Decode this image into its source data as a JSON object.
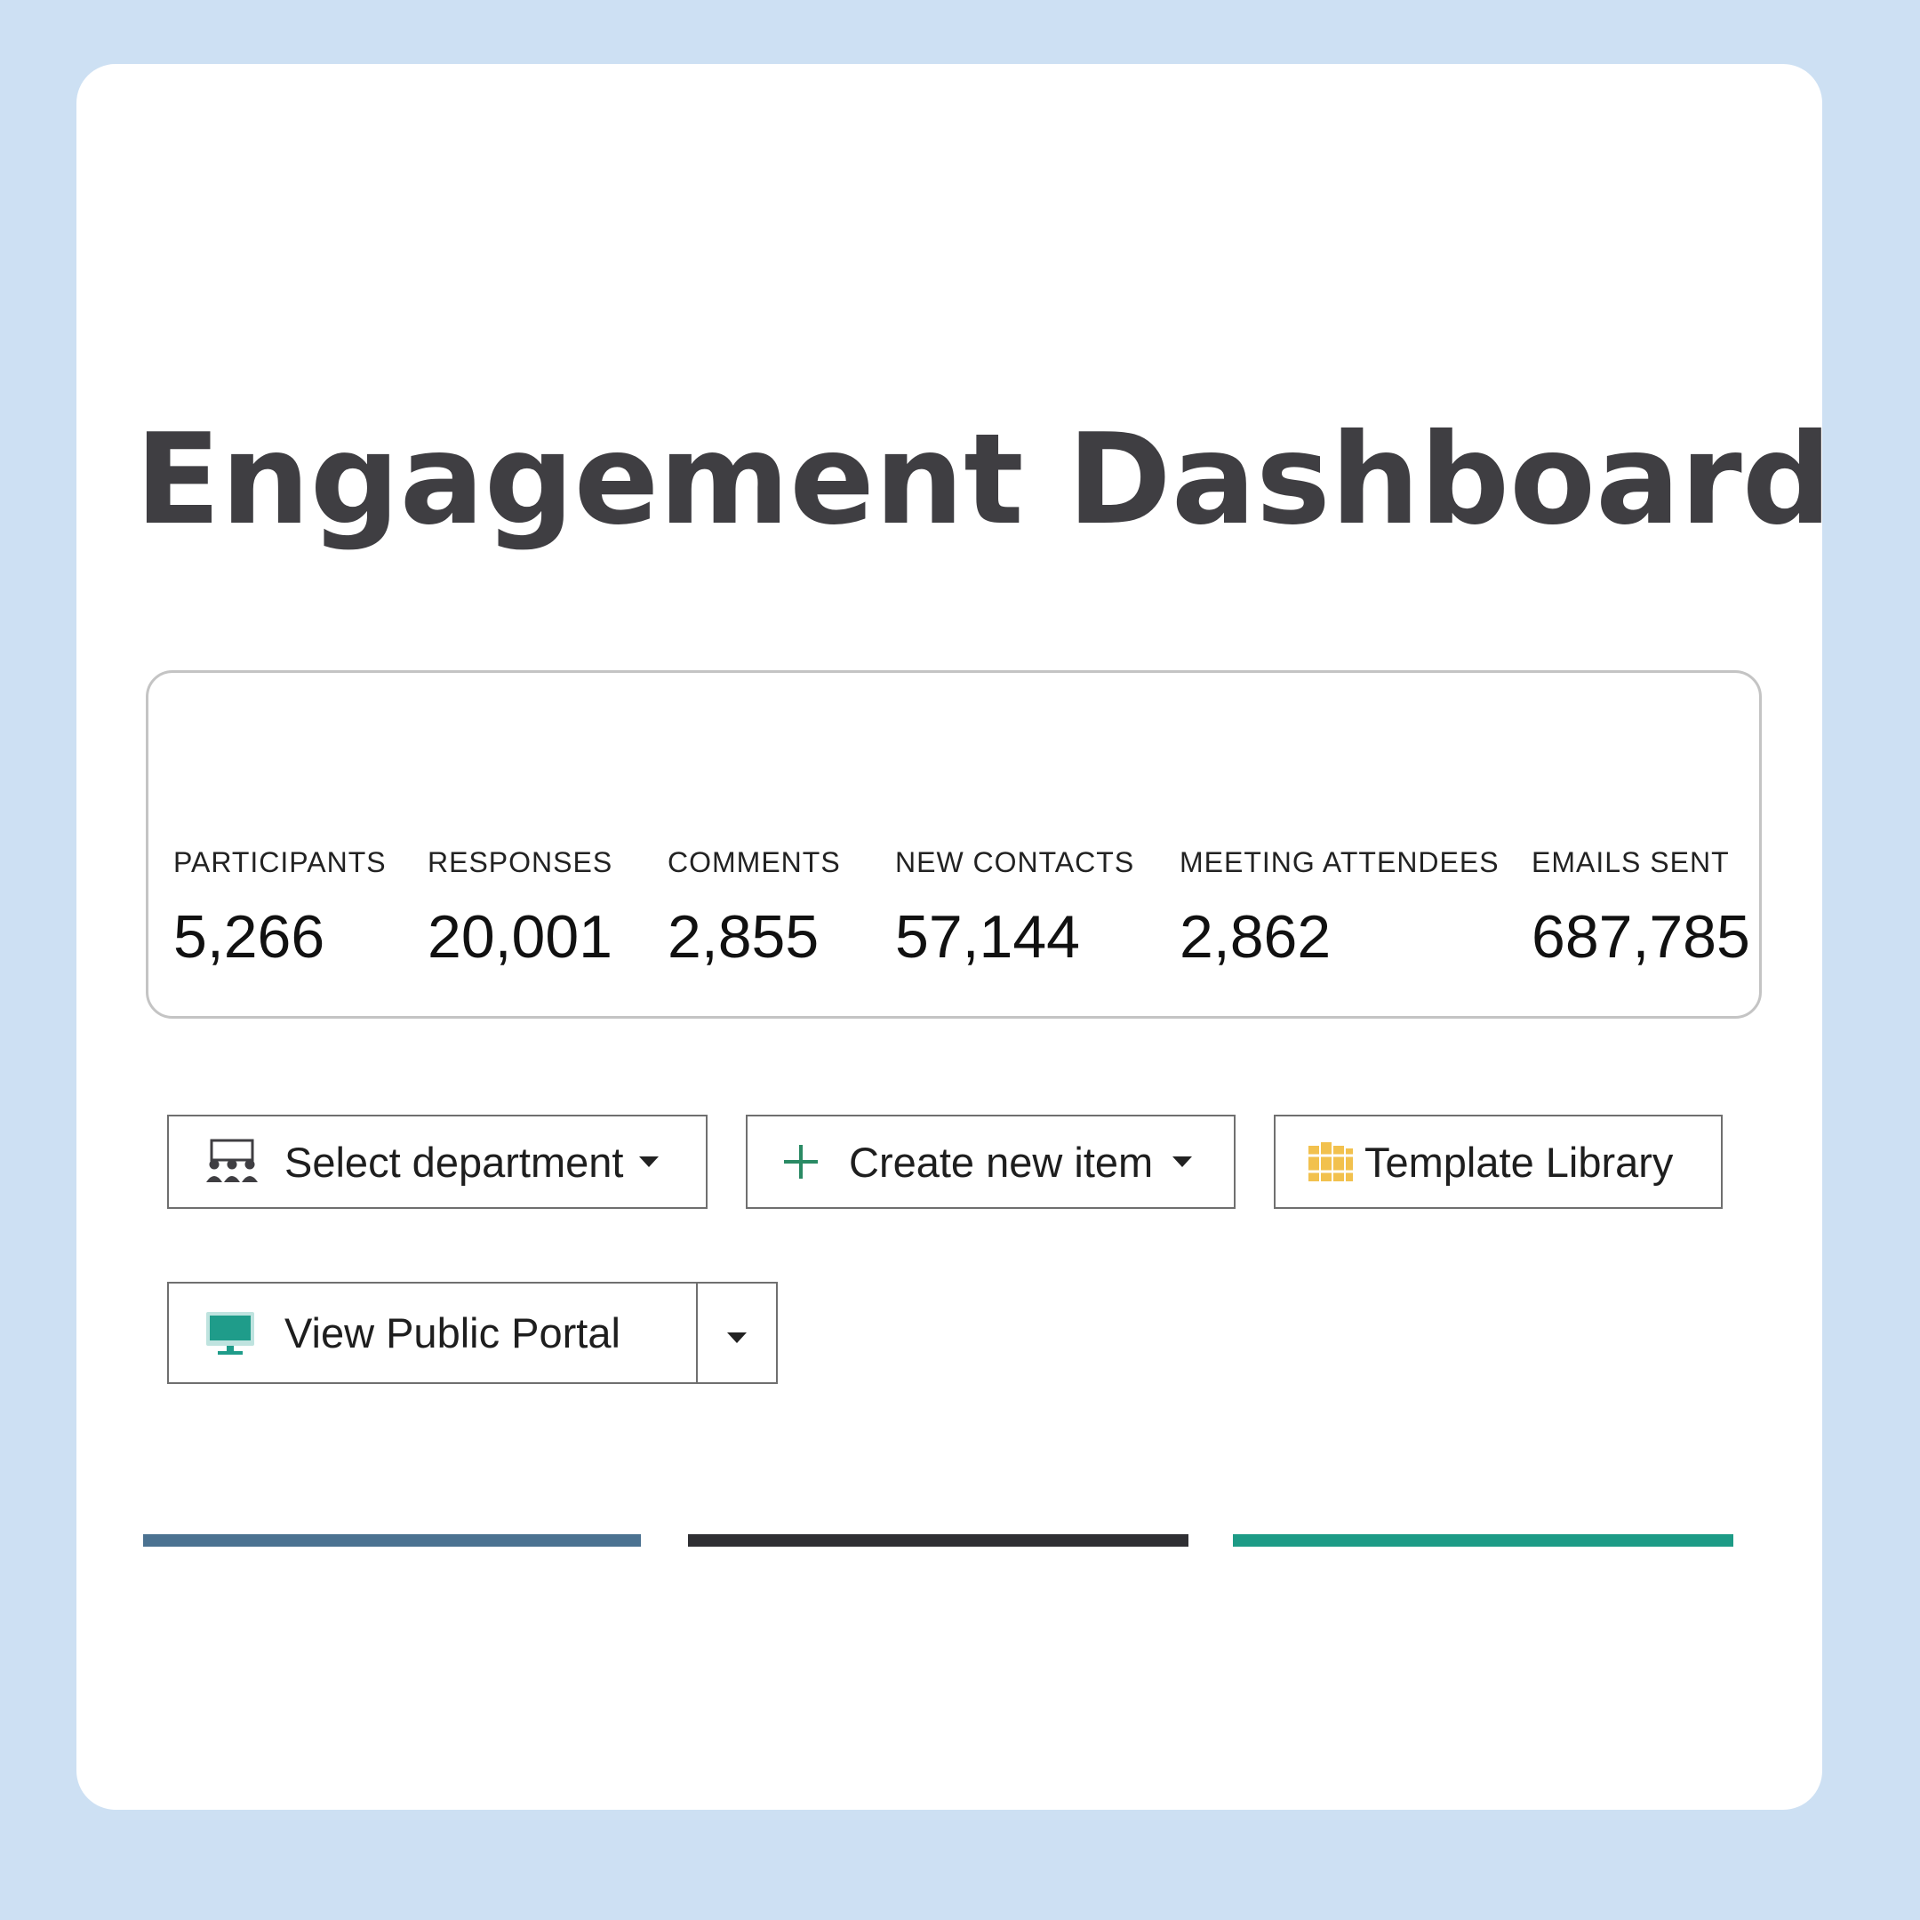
{
  "page": {
    "title": "Engagement Dashboard"
  },
  "stats": [
    {
      "label": "PARTICIPANTS",
      "value": "5,266"
    },
    {
      "label": "RESPONSES",
      "value": "20,001"
    },
    {
      "label": "COMMENTS",
      "value": "2,855"
    },
    {
      "label": "NEW CONTACTS",
      "value": "57,144"
    },
    {
      "label": "MEETING ATTENDEES",
      "value": "2,862"
    },
    {
      "label": "EMAILS SENT",
      "value": "687,785"
    }
  ],
  "actions": {
    "select_department": {
      "label": "Select department",
      "icon": "group-presentation-icon"
    },
    "create_new_item": {
      "label": "Create new item",
      "icon": "plus-icon"
    },
    "template_library": {
      "label": "Template Library",
      "icon": "library-books-icon"
    },
    "view_public_portal": {
      "label": "View Public Portal",
      "icon": "monitor-icon"
    }
  },
  "accent_colors": {
    "blue": "#4b7291",
    "dark": "#2f2f33",
    "teal": "#1d9b86",
    "plus": "#2a8a64",
    "library": "#f2c14e",
    "monitor": "#1f9c8a"
  }
}
